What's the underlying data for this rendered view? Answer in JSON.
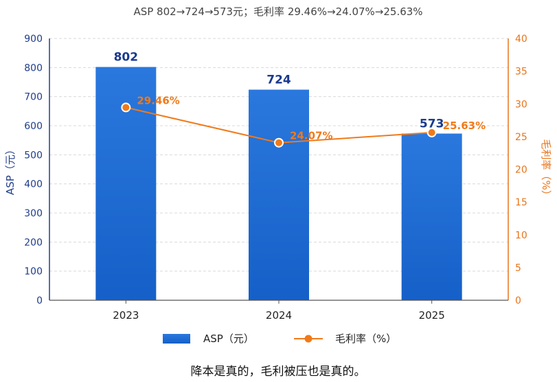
{
  "chart_data": {
    "type": "bar",
    "subtitle": "ASP 802→724→573元；毛利率 29.46%→24.07%→25.63%",
    "categories": [
      "2023",
      "2024",
      "2025"
    ],
    "series": [
      {
        "name": "ASP（元）",
        "type": "bar",
        "axis": "left",
        "values": [
          802,
          724,
          573
        ],
        "labels": [
          "802",
          "724",
          "573"
        ],
        "color": "#1f6fd6"
      },
      {
        "name": "毛利率（%）",
        "type": "line",
        "axis": "right",
        "values": [
          29.46,
          24.07,
          25.63
        ],
        "labels": [
          "29.46%",
          "24.07%",
          "25.63%"
        ],
        "color": "#f07a1a"
      }
    ],
    "ylabel": "ASP（元）",
    "y2label": "毛利率（%）",
    "ylim": [
      0,
      900
    ],
    "y2lim": [
      0,
      40
    ],
    "yticks": [
      0,
      100,
      200,
      300,
      400,
      500,
      600,
      700,
      800,
      900
    ],
    "y2ticks": [
      0,
      5,
      10,
      15,
      20,
      25,
      30,
      35,
      40
    ],
    "grid": true,
    "legend": "bottom",
    "caption": "降本是真的，毛利被压也是真的。"
  },
  "colors": {
    "bar": "#1f6fd6",
    "bar_light": "#3d8ae6",
    "line": "#f07a1a",
    "left_axis": "#1f3d8a",
    "right_axis": "#e8741a"
  }
}
